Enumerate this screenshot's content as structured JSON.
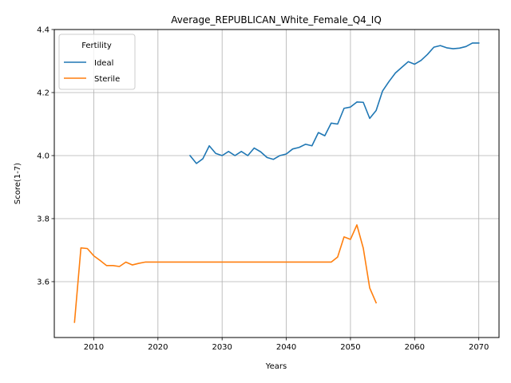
{
  "chart_data": {
    "type": "line",
    "title": "Average_REPUBLICAN_White_Female_Q4_IQ",
    "xlabel": "Years",
    "ylabel": "Score(1-7)",
    "xlim": [
      2003.85,
      2073.15
    ],
    "ylim": [
      3.4227,
      4.4
    ],
    "x_ticks": [
      2010,
      2020,
      2030,
      2040,
      2050,
      2060,
      2070
    ],
    "y_ticks": [
      3.6,
      3.8,
      4.0,
      4.2,
      4.4
    ],
    "x_tick_labels": [
      "2010",
      "2020",
      "2030",
      "2040",
      "2050",
      "2060",
      "2070"
    ],
    "y_tick_labels": [
      "3.6",
      "3.8",
      "4.0",
      "4.2",
      "4.4"
    ],
    "grid": true,
    "legend": {
      "title": "Fertility",
      "placement": "top-left"
    },
    "series": [
      {
        "name": "Ideal",
        "color": "#1f77b4",
        "x": [
          2025,
          2026,
          2027,
          2028,
          2029,
          2030,
          2031,
          2032,
          2033,
          2034,
          2035,
          2036,
          2037,
          2038,
          2039,
          2040,
          2041,
          2042,
          2043,
          2044,
          2045,
          2046,
          2047,
          2048,
          2049,
          2050,
          2051,
          2052,
          2053,
          2054,
          2055,
          2056,
          2057,
          2058,
          2059,
          2060,
          2061,
          2062,
          2063,
          2064,
          2065,
          2066,
          2067,
          2068,
          2069,
          2070
        ],
        "y": [
          4.0,
          3.975,
          3.99,
          4.031,
          4.007,
          4.0,
          4.013,
          4.0,
          4.013,
          4.0,
          4.024,
          4.012,
          3.994,
          3.988,
          4.0,
          4.005,
          4.021,
          4.026,
          4.036,
          4.031,
          4.073,
          4.063,
          4.103,
          4.1,
          4.15,
          4.154,
          4.17,
          4.169,
          4.118,
          4.143,
          4.205,
          4.235,
          4.262,
          4.28,
          4.298,
          4.29,
          4.302,
          4.321,
          4.344,
          4.349,
          4.342,
          4.339,
          4.341,
          4.346,
          4.357,
          4.357
        ]
      },
      {
        "name": "Sterile",
        "color": "#ff7f0e",
        "x": [
          2007,
          2008,
          2009,
          2010,
          2011,
          2012,
          2013,
          2014,
          2015,
          2016,
          2017,
          2018,
          2019,
          2020,
          2021,
          2022,
          2023,
          2024,
          2025,
          2026,
          2027,
          2028,
          2029,
          2030,
          2031,
          2032,
          2033,
          2034,
          2035,
          2036,
          2037,
          2038,
          2039,
          2040,
          2041,
          2042,
          2043,
          2044,
          2045,
          2046,
          2047,
          2048,
          2049,
          2050,
          2051,
          2052,
          2053,
          2054
        ],
        "y": [
          3.471,
          3.707,
          3.705,
          3.682,
          3.667,
          3.651,
          3.651,
          3.648,
          3.662,
          3.653,
          3.658,
          3.662,
          3.662,
          3.662,
          3.662,
          3.662,
          3.662,
          3.662,
          3.662,
          3.662,
          3.662,
          3.662,
          3.662,
          3.662,
          3.662,
          3.662,
          3.662,
          3.662,
          3.662,
          3.662,
          3.662,
          3.662,
          3.662,
          3.662,
          3.662,
          3.662,
          3.662,
          3.662,
          3.662,
          3.662,
          3.662,
          3.678,
          3.742,
          3.734,
          3.78,
          3.706,
          3.58,
          3.533
        ]
      }
    ]
  }
}
